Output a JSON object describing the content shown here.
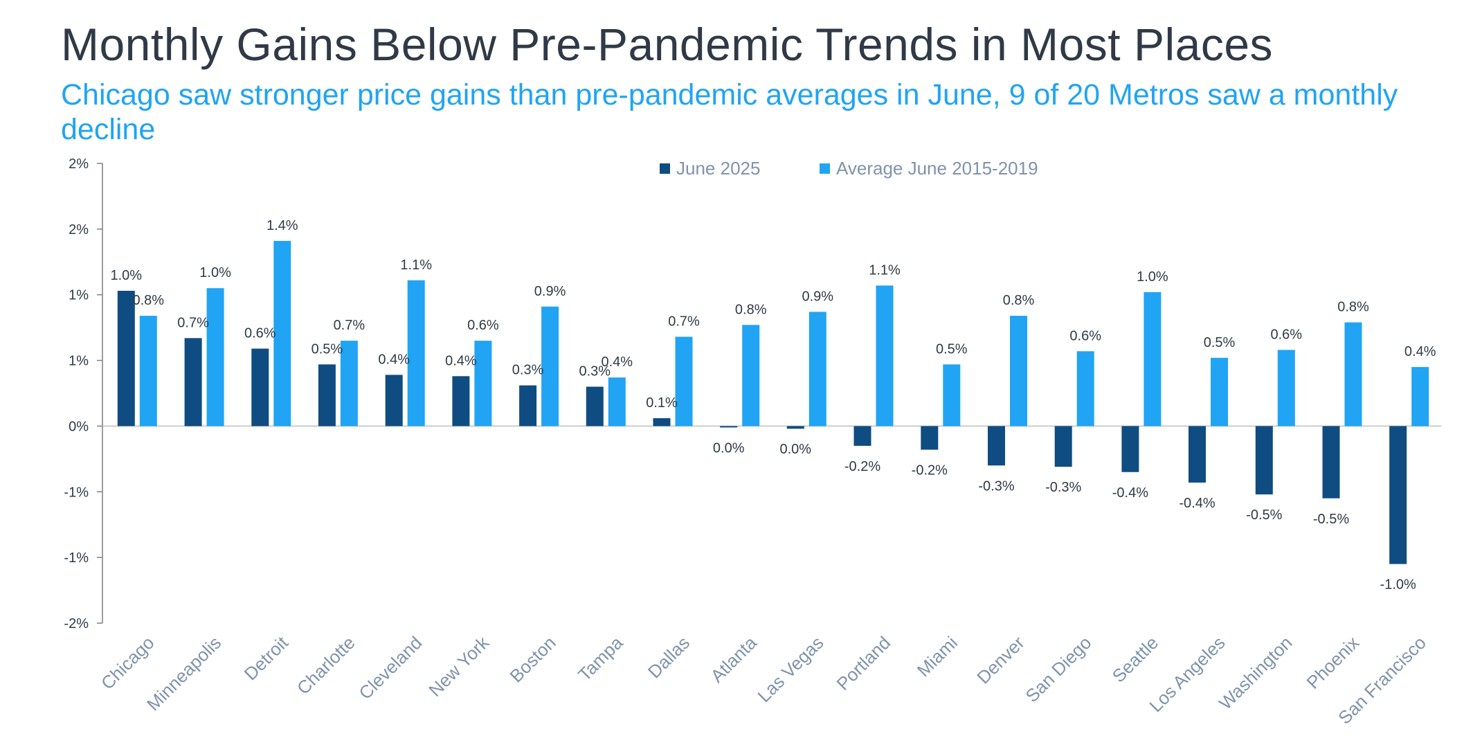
{
  "title": "Monthly Gains Below Pre-Pandemic Trends in Most Places",
  "subtitle": "Chicago saw stronger price gains than pre-pandemic averages in June, 9 of 20 Metros saw a monthly decline",
  "colors": {
    "series1": "#0f4c81",
    "series2": "#20a4f3",
    "title": "#2f3a46",
    "subtitle": "#20a4f3",
    "axis_text": "#7f93ab"
  },
  "chart_data": {
    "type": "bar",
    "title": "Monthly Gains Below Pre-Pandemic Trends in Most Places",
    "xlabel": "",
    "ylabel": "",
    "ylim": [
      -1.5,
      2.0
    ],
    "yticks": [
      2.0,
      1.5,
      1.0,
      0.5,
      0.0,
      -0.5,
      -1.0,
      -1.5
    ],
    "ytick_labels": [
      "2%",
      "2%",
      "1%",
      "1%",
      "0%",
      "-1%",
      "-1%",
      "-2%"
    ],
    "grid": false,
    "legend_position": "top-center",
    "categories": [
      "Chicago",
      "Minneapolis",
      "Detroit",
      "Charlotte",
      "Cleveland",
      "New York",
      "Boston",
      "Tampa",
      "Dallas",
      "Atlanta",
      "Las Vegas",
      "Portland",
      "Miami",
      "Denver",
      "San Diego",
      "Seattle",
      "Los Angeles",
      "Washington",
      "Phoenix",
      "San Francisco"
    ],
    "series": [
      {
        "name": "June 2025",
        "values": [
          1.03,
          0.67,
          0.59,
          0.47,
          0.39,
          0.38,
          0.31,
          0.3,
          0.06,
          -0.01,
          -0.02,
          -0.15,
          -0.18,
          -0.3,
          -0.31,
          -0.35,
          -0.43,
          -0.52,
          -0.55,
          -1.05
        ],
        "labels": [
          "1.0%",
          "0.7%",
          "0.6%",
          "0.5%",
          "0.4%",
          "0.4%",
          "0.3%",
          "0.3%",
          "0.1%",
          "0.0%",
          "0.0%",
          "-0.2%",
          "-0.2%",
          "-0.3%",
          "-0.3%",
          "-0.4%",
          "-0.4%",
          "-0.5%",
          "-0.5%",
          "-1.0%"
        ]
      },
      {
        "name": "Average June 2015-2019",
        "values": [
          0.84,
          1.05,
          1.41,
          0.65,
          1.11,
          0.65,
          0.91,
          0.37,
          0.68,
          0.77,
          0.87,
          1.07,
          0.47,
          0.84,
          0.57,
          1.02,
          0.52,
          0.58,
          0.79,
          0.45
        ],
        "labels": [
          "0.8%",
          "1.0%",
          "1.4%",
          "0.7%",
          "1.1%",
          "0.6%",
          "0.9%",
          "0.4%",
          "0.7%",
          "0.8%",
          "0.9%",
          "1.1%",
          "0.5%",
          "0.8%",
          "0.6%",
          "1.0%",
          "0.5%",
          "0.6%",
          "0.8%",
          "0.4%"
        ]
      }
    ]
  }
}
